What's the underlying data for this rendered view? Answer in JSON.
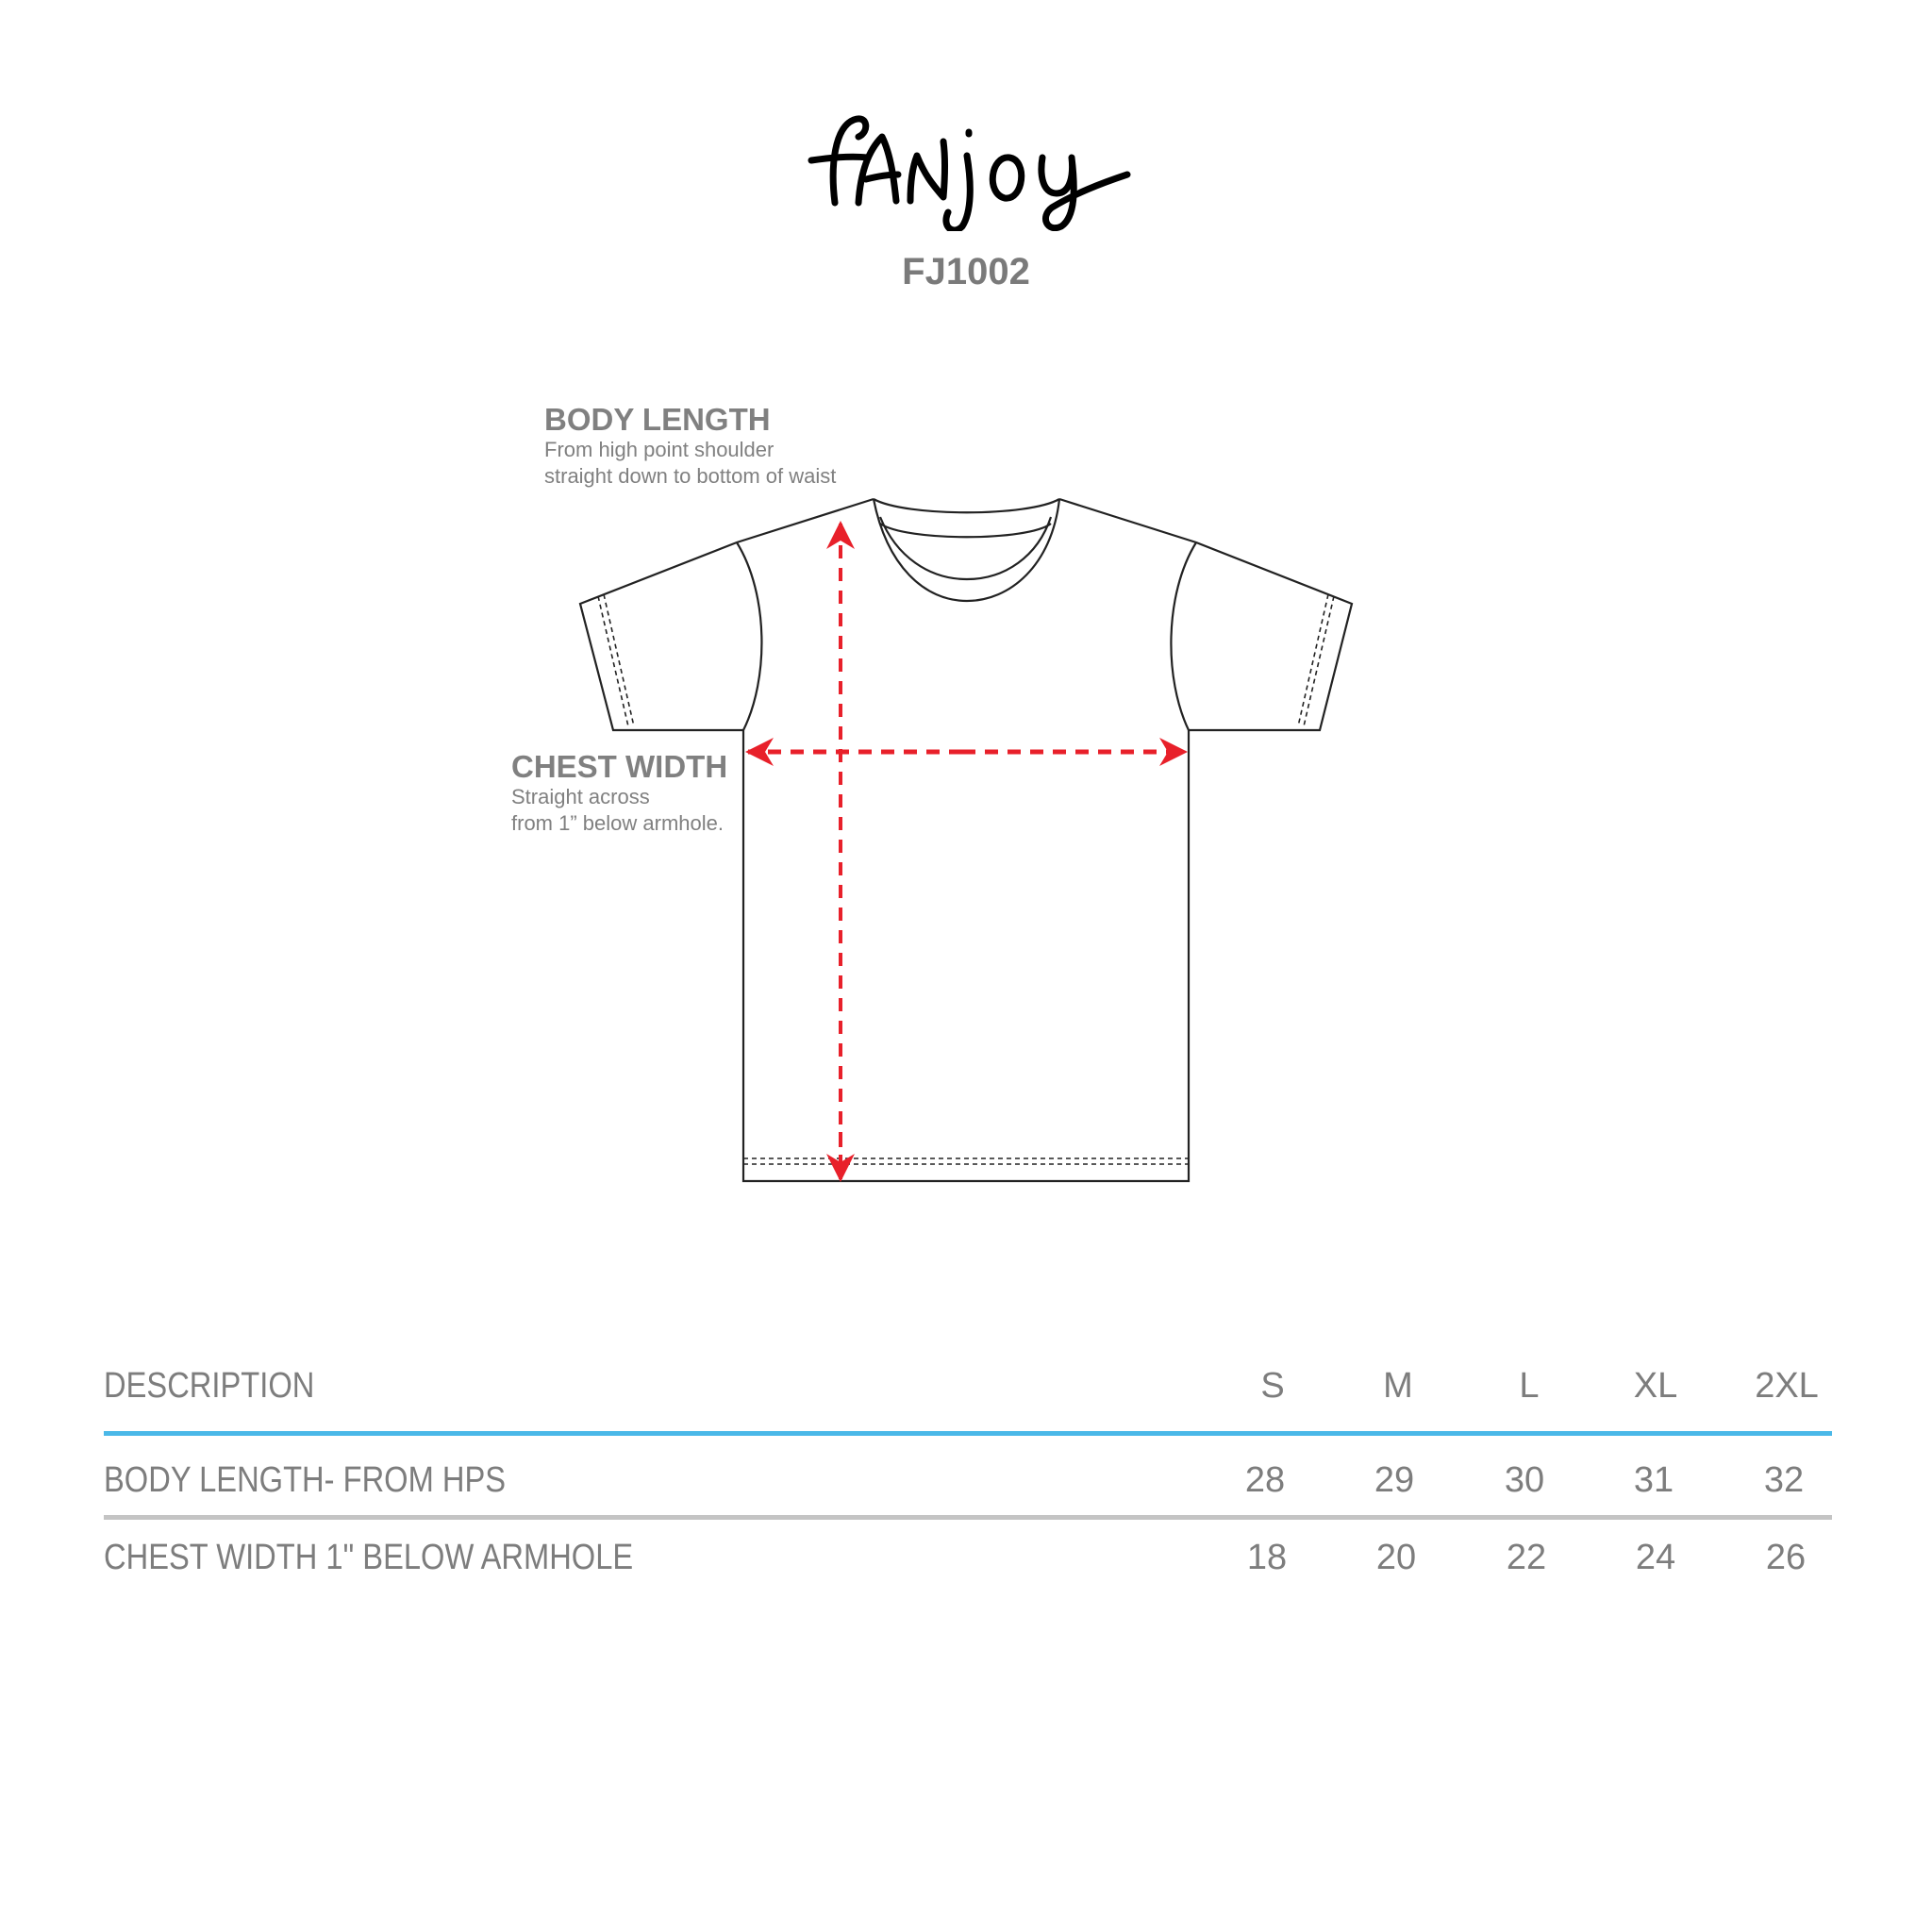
{
  "brand": {
    "logo_text": "fanjoy",
    "product_code": "FJ1002"
  },
  "measure_guides": {
    "body_length": {
      "title": "BODY LENGTH",
      "lines": [
        "From high point shoulder",
        "straight down to bottom of waist"
      ]
    },
    "chest_width": {
      "title": "CHEST WIDTH",
      "lines": [
        "Straight across",
        "from 1” below armhole."
      ]
    }
  },
  "colors": {
    "arrow": "#e8202a",
    "header_rule": "#4ab8e8",
    "row_rule": "#c4c4c4",
    "text": "#808080"
  },
  "size_table": {
    "header": {
      "description": "DESCRIPTION",
      "sizes": [
        "S",
        "M",
        "L",
        "XL",
        "2XL"
      ]
    },
    "rows": [
      {
        "label": "BODY LENGTH- FROM HPS",
        "values": [
          "28",
          "29",
          "30",
          "31",
          "32"
        ]
      },
      {
        "label": "CHEST WIDTH 1\" BELOW  ARMHOLE",
        "values": [
          "18",
          "20",
          "22",
          "24",
          "26"
        ]
      }
    ]
  }
}
